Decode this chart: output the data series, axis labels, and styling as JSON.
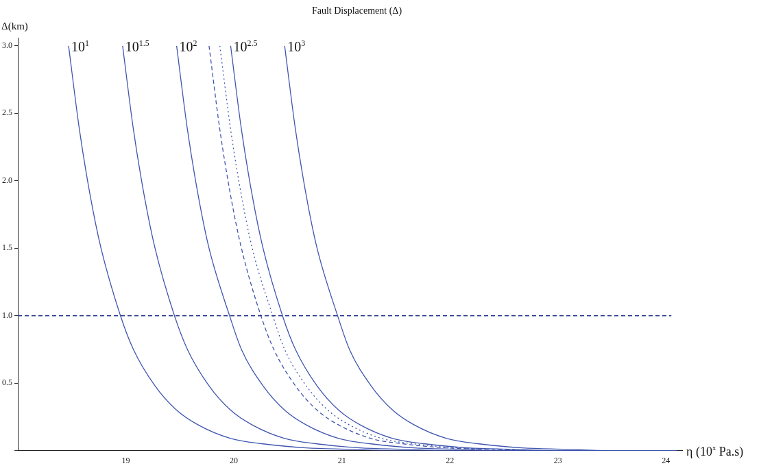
{
  "chart_data": {
    "type": "line",
    "title": "Fault Displacement (Δ)",
    "xlabel": "η (10$^{x}$ Pa.s)",
    "ylabel": "Δ(km)",
    "xlim": [
      18,
      24.15
    ],
    "ylim": [
      0,
      3.06
    ],
    "xticks": [
      19,
      20,
      21,
      22,
      23,
      24
    ],
    "yticks": [
      {
        "value": 0,
        "label": null
      },
      0.5,
      {
        "value": 1,
        "label": "1.0"
      },
      1.5,
      {
        "value": 2,
        "label": "2.0"
      },
      2.5,
      {
        "value": 3,
        "label": "3.0"
      }
    ],
    "grid": false,
    "legend": false,
    "marker": "none",
    "tick_labels": true,
    "ref_lines": [
      {
        "axis": "y",
        "value": 1,
        "color": "#2b3a8f",
        "line_style": "dashed"
      }
    ],
    "series": [
      {
        "name": "10$^{1}$",
        "color": "#3f55b0",
        "line_style": "solid",
        "x": [
          18.47,
          18.57,
          18.67,
          18.77,
          18.95,
          19.07,
          19.27,
          19.47,
          19.67,
          19.97,
          20.27,
          20.67,
          21.07,
          21.47,
          24.1
        ],
        "values": [
          3,
          2.38,
          1.89,
          1.5,
          1.0,
          0.75,
          0.48,
          0.3,
          0.19,
          0.09,
          0.05,
          0.02,
          0.01,
          0,
          0
        ]
      },
      {
        "name": "10$^{1.5}$",
        "color": "#3f55b0",
        "line_style": "solid",
        "x": [
          18.97,
          19.07,
          19.17,
          19.27,
          19.45,
          19.57,
          19.77,
          19.97,
          20.17,
          20.47,
          20.77,
          21.17,
          21.57,
          21.97,
          24.1
        ],
        "values": [
          3,
          2.38,
          1.89,
          1.5,
          1.0,
          0.75,
          0.48,
          0.3,
          0.19,
          0.09,
          0.05,
          0.02,
          0.01,
          0,
          0
        ]
      },
      {
        "name": "10$^{2}$",
        "color": "#3f55b0",
        "line_style": "solid",
        "x": [
          19.47,
          19.57,
          19.67,
          19.77,
          19.96,
          20.07,
          20.27,
          20.47,
          20.67,
          20.97,
          21.27,
          21.67,
          22.07,
          22.47,
          24.1
        ],
        "values": [
          3,
          2.38,
          1.89,
          1.5,
          1.0,
          0.75,
          0.48,
          0.3,
          0.19,
          0.09,
          0.05,
          0.02,
          0.01,
          0,
          0
        ]
      },
      {
        "color": "#3f55b0",
        "line_style": "dashed",
        "x": [
          19.77,
          19.87,
          19.97,
          20.07,
          20.25,
          20.37,
          20.57,
          20.77,
          20.97,
          21.27,
          21.57,
          21.97,
          22.37,
          22.77,
          24.1
        ],
        "values": [
          3,
          2.38,
          1.89,
          1.5,
          1.0,
          0.75,
          0.48,
          0.3,
          0.19,
          0.09,
          0.05,
          0.02,
          0.01,
          0,
          0
        ]
      },
      {
        "color": "#3f55b0",
        "line_style": "dotted",
        "x": [
          19.87,
          19.97,
          20.07,
          20.17,
          20.36,
          20.47,
          20.67,
          20.87,
          21.07,
          21.37,
          21.67,
          22.07,
          22.47,
          22.87,
          24.1
        ],
        "values": [
          3,
          2.38,
          1.89,
          1.5,
          1.0,
          0.75,
          0.48,
          0.3,
          0.19,
          0.09,
          0.05,
          0.02,
          0.01,
          0,
          0
        ]
      },
      {
        "name": "10$^{2.5}$",
        "color": "#3f55b0",
        "line_style": "solid",
        "x": [
          19.97,
          20.07,
          20.17,
          20.27,
          20.45,
          20.57,
          20.77,
          20.97,
          21.17,
          21.47,
          21.77,
          22.17,
          22.57,
          22.97,
          24.1
        ],
        "values": [
          3,
          2.38,
          1.89,
          1.5,
          1.0,
          0.75,
          0.48,
          0.3,
          0.19,
          0.09,
          0.05,
          0.02,
          0.01,
          0,
          0
        ]
      },
      {
        "name": "10$^{3}$",
        "color": "#3f55b0",
        "line_style": "solid",
        "x": [
          20.47,
          20.57,
          20.67,
          20.77,
          20.96,
          21.07,
          21.27,
          21.47,
          21.67,
          21.97,
          22.27,
          22.67,
          23.07,
          23.47,
          24.1
        ],
        "values": [
          3,
          2.38,
          1.89,
          1.5,
          1.0,
          0.75,
          0.48,
          0.3,
          0.19,
          0.09,
          0.05,
          0.02,
          0.01,
          0,
          0
        ]
      }
    ]
  }
}
